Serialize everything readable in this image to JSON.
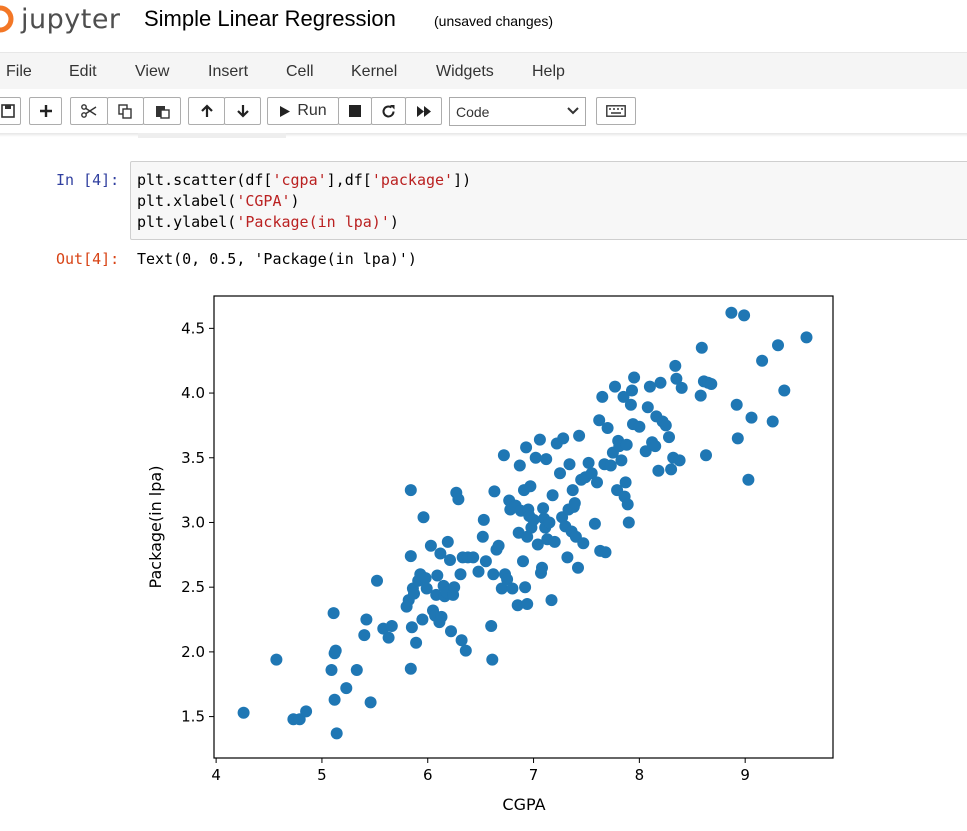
{
  "header": {
    "logo_text": "jupyter",
    "notebook_title": "Simple Linear Regression",
    "autosave_status": "(unsaved changes)"
  },
  "menu": [
    "File",
    "Edit",
    "View",
    "Insert",
    "Cell",
    "Kernel",
    "Widgets",
    "Help"
  ],
  "toolbar": {
    "run_label": "Run",
    "cell_type": "Code"
  },
  "cell": {
    "input_prompt": "In [4]:",
    "output_prompt": "Out[4]:",
    "code": [
      {
        "pre": "plt.scatter(df[",
        "str1": "'cgpa'",
        "mid": "],df[",
        "str2": "'package'",
        "post": "])"
      },
      {
        "pre": "plt.xlabel(",
        "str1": "'CGPA'",
        "post": ")"
      },
      {
        "pre": "plt.ylabel(",
        "str1": "'Package(in lpa)'",
        "post": ")"
      }
    ],
    "output_text": "Text(0, 0.5, 'Package(in lpa)')"
  },
  "chart_data": {
    "type": "scatter",
    "xlabel": "CGPA",
    "ylabel": "Package(in lpa)",
    "xlim": [
      3.98,
      9.83
    ],
    "ylim": [
      1.18,
      4.75
    ],
    "xticks": [
      "4",
      "5",
      "6",
      "7",
      "8",
      "9"
    ],
    "xtick_values": [
      4,
      5,
      6,
      7,
      8,
      9
    ],
    "yticks": [
      "1.5",
      "2.0",
      "2.5",
      "3.0",
      "3.5",
      "4.0",
      "4.5"
    ],
    "ytick_values": [
      1.5,
      2.0,
      2.5,
      3.0,
      3.5,
      4.0,
      4.5
    ],
    "marker_color": "#1f77b4",
    "points": [
      [
        4.26,
        1.53
      ],
      [
        4.57,
        1.94
      ],
      [
        4.73,
        1.48
      ],
      [
        4.79,
        1.48
      ],
      [
        4.85,
        1.54
      ],
      [
        5.09,
        1.86
      ],
      [
        5.11,
        2.3
      ],
      [
        5.12,
        1.99
      ],
      [
        5.13,
        2.01
      ],
      [
        5.12,
        1.63
      ],
      [
        5.14,
        1.37
      ],
      [
        5.23,
        1.72
      ],
      [
        5.33,
        1.86
      ],
      [
        5.4,
        2.13
      ],
      [
        5.42,
        2.25
      ],
      [
        5.46,
        1.61
      ],
      [
        5.52,
        2.55
      ],
      [
        5.58,
        2.18
      ],
      [
        5.63,
        2.11
      ],
      [
        5.66,
        2.2
      ],
      [
        5.8,
        2.35
      ],
      [
        5.82,
        2.4
      ],
      [
        5.84,
        3.25
      ],
      [
        5.84,
        2.74
      ],
      [
        5.84,
        1.87
      ],
      [
        5.85,
        2.19
      ],
      [
        5.86,
        2.49
      ],
      [
        5.87,
        2.45
      ],
      [
        5.89,
        2.07
      ],
      [
        5.91,
        2.55
      ],
      [
        5.93,
        2.6
      ],
      [
        5.95,
        2.25
      ],
      [
        5.96,
        3.04
      ],
      [
        5.98,
        2.57
      ],
      [
        5.99,
        2.49
      ],
      [
        6.03,
        2.82
      ],
      [
        6.05,
        2.32
      ],
      [
        6.07,
        2.28
      ],
      [
        6.08,
        2.44
      ],
      [
        6.09,
        2.59
      ],
      [
        6.11,
        2.23
      ],
      [
        6.12,
        2.76
      ],
      [
        6.13,
        2.27
      ],
      [
        6.15,
        2.51
      ],
      [
        6.16,
        2.43
      ],
      [
        6.18,
        2.46
      ],
      [
        6.19,
        2.85
      ],
      [
        6.21,
        2.71
      ],
      [
        6.22,
        2.16
      ],
      [
        6.24,
        2.44
      ],
      [
        6.25,
        2.5
      ],
      [
        6.27,
        3.23
      ],
      [
        6.29,
        3.18
      ],
      [
        6.31,
        2.6
      ],
      [
        6.32,
        2.09
      ],
      [
        6.33,
        2.73
      ],
      [
        6.36,
        2.01
      ],
      [
        6.38,
        2.73
      ],
      [
        6.43,
        2.73
      ],
      [
        6.48,
        2.62
      ],
      [
        6.52,
        2.89
      ],
      [
        6.53,
        3.02
      ],
      [
        6.55,
        2.7
      ],
      [
        6.6,
        2.2
      ],
      [
        6.61,
        1.94
      ],
      [
        6.62,
        2.6
      ],
      [
        6.63,
        3.24
      ],
      [
        6.65,
        2.79
      ],
      [
        6.67,
        2.82
      ],
      [
        6.7,
        2.49
      ],
      [
        6.72,
        3.52
      ],
      [
        6.73,
        2.6
      ],
      [
        6.75,
        2.56
      ],
      [
        6.77,
        3.17
      ],
      [
        6.78,
        3.1
      ],
      [
        6.8,
        2.49
      ],
      [
        6.83,
        3.13
      ],
      [
        6.85,
        2.36
      ],
      [
        6.86,
        2.92
      ],
      [
        6.87,
        3.44
      ],
      [
        6.88,
        3.09
      ],
      [
        6.9,
        2.7
      ],
      [
        6.91,
        3.25
      ],
      [
        6.92,
        2.5
      ],
      [
        6.93,
        3.58
      ],
      [
        6.94,
        2.37
      ],
      [
        6.94,
        2.89
      ],
      [
        6.95,
        3.1
      ],
      [
        6.96,
        3.05
      ],
      [
        6.97,
        3.28
      ],
      [
        6.98,
        2.96
      ],
      [
        7.0,
        3.02
      ],
      [
        7.02,
        3.5
      ],
      [
        7.04,
        2.83
      ],
      [
        7.06,
        3.64
      ],
      [
        7.07,
        2.61
      ],
      [
        7.08,
        2.65
      ],
      [
        7.09,
        3.11
      ],
      [
        7.1,
        3.03
      ],
      [
        7.11,
        2.96
      ],
      [
        7.12,
        3.49
      ],
      [
        7.13,
        2.87
      ],
      [
        7.15,
        3.0
      ],
      [
        7.17,
        2.4
      ],
      [
        7.18,
        3.21
      ],
      [
        7.2,
        2.85
      ],
      [
        7.22,
        3.61
      ],
      [
        7.25,
        3.38
      ],
      [
        7.27,
        3.04
      ],
      [
        7.28,
        3.65
      ],
      [
        7.3,
        2.97
      ],
      [
        7.32,
        2.73
      ],
      [
        7.33,
        3.1
      ],
      [
        7.34,
        3.45
      ],
      [
        7.36,
        2.93
      ],
      [
        7.37,
        3.25
      ],
      [
        7.38,
        3.12
      ],
      [
        7.39,
        3.15
      ],
      [
        7.4,
        2.89
      ],
      [
        7.42,
        2.65
      ],
      [
        7.43,
        3.67
      ],
      [
        7.45,
        3.33
      ],
      [
        7.47,
        2.84
      ],
      [
        7.49,
        3.35
      ],
      [
        7.52,
        3.46
      ],
      [
        7.55,
        3.38
      ],
      [
        7.58,
        2.99
      ],
      [
        7.6,
        3.31
      ],
      [
        7.62,
        3.79
      ],
      [
        7.63,
        2.78
      ],
      [
        7.65,
        3.97
      ],
      [
        7.67,
        3.45
      ],
      [
        7.68,
        2.77
      ],
      [
        7.7,
        3.73
      ],
      [
        7.73,
        3.44
      ],
      [
        7.75,
        3.54
      ],
      [
        7.77,
        4.05
      ],
      [
        7.79,
        3.25
      ],
      [
        7.8,
        3.63
      ],
      [
        7.81,
        3.59
      ],
      [
        7.83,
        3.48
      ],
      [
        7.85,
        3.97
      ],
      [
        7.86,
        3.2
      ],
      [
        7.87,
        3.31
      ],
      [
        7.88,
        3.6
      ],
      [
        7.89,
        3.14
      ],
      [
        7.9,
        3.0
      ],
      [
        7.92,
        3.91
      ],
      [
        7.93,
        4.02
      ],
      [
        7.94,
        3.76
      ],
      [
        7.95,
        4.12
      ],
      [
        8.0,
        3.74
      ],
      [
        8.06,
        3.55
      ],
      [
        8.08,
        3.89
      ],
      [
        8.1,
        4.05
      ],
      [
        8.12,
        3.62
      ],
      [
        8.15,
        3.59
      ],
      [
        8.16,
        3.82
      ],
      [
        8.18,
        3.4
      ],
      [
        8.2,
        4.08
      ],
      [
        8.22,
        3.78
      ],
      [
        8.25,
        3.75
      ],
      [
        8.28,
        3.66
      ],
      [
        8.3,
        3.41
      ],
      [
        8.32,
        3.5
      ],
      [
        8.34,
        4.21
      ],
      [
        8.35,
        4.11
      ],
      [
        8.38,
        3.48
      ],
      [
        8.4,
        4.04
      ],
      [
        8.58,
        3.98
      ],
      [
        8.59,
        4.35
      ],
      [
        8.61,
        4.09
      ],
      [
        8.63,
        3.52
      ],
      [
        8.65,
        4.08
      ],
      [
        8.68,
        4.07
      ],
      [
        8.87,
        4.62
      ],
      [
        8.92,
        3.91
      ],
      [
        8.93,
        3.65
      ],
      [
        8.99,
        4.6
      ],
      [
        9.03,
        3.33
      ],
      [
        9.06,
        3.81
      ],
      [
        9.16,
        4.25
      ],
      [
        9.26,
        3.78
      ],
      [
        9.31,
        4.37
      ],
      [
        9.37,
        4.02
      ],
      [
        9.58,
        4.43
      ]
    ]
  }
}
